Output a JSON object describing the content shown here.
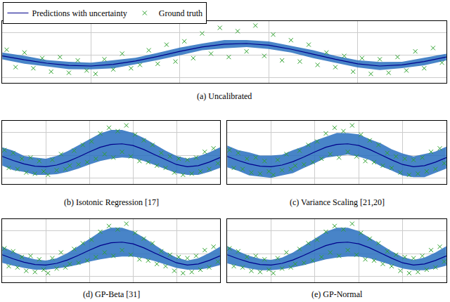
{
  "chart_data": [
    {
      "type": "line",
      "title": "(a) Uncalibrated",
      "legend": "top left",
      "grid": true,
      "tick_labels": false,
      "xlim": [
        0,
        10
      ],
      "xticks": [
        0,
        2,
        4,
        6,
        8,
        10
      ],
      "ylim": [
        -2.5,
        3
      ],
      "yticks": [
        -2,
        0,
        2
      ],
      "series": [
        {
          "name": "Ground truth",
          "type": "scatter",
          "marker": "x",
          "color": "#2ca02c",
          "x": [
            0.1,
            0.3,
            0.5,
            0.7,
            0.9,
            1.1,
            1.3,
            1.5,
            1.7,
            1.9,
            2.1,
            2.3,
            2.5,
            2.7,
            2.9,
            3.1,
            3.3,
            3.5,
            3.7,
            3.9,
            4.1,
            4.3,
            4.5,
            4.7,
            4.9,
            5.1,
            5.3,
            5.5,
            5.7,
            5.9,
            6.1,
            6.3,
            6.5,
            6.7,
            6.9,
            7.1,
            7.3,
            7.5,
            7.7,
            7.9,
            8.1,
            8.3,
            8.5,
            8.7,
            8.9,
            9.1,
            9.3,
            9.5,
            9.7,
            9.9
          ],
          "values": [
            0.45,
            -1.1,
            0.2,
            -1.2,
            -0.3,
            -1.5,
            -0.2,
            -1.6,
            -0.5,
            -1.4,
            -1.7,
            -0.4,
            -1.3,
            0.1,
            -1.2,
            -0.9,
            0.4,
            -0.8,
            0.9,
            -0.6,
            1.2,
            -0.3,
            1.9,
            0.1,
            2.4,
            -0.2,
            2.1,
            0.3,
            2.6,
            -0.1,
            1.8,
            -0.5,
            1.3,
            -0.6,
            0.9,
            -0.9,
            0.2,
            -1.1,
            -0.1,
            -1.5,
            -0.3,
            -1.7,
            -0.4,
            -1.6,
            -0.2,
            -1.4,
            0.3,
            -1.2,
            0.6,
            -0.7
          ]
        },
        {
          "name": "Predictions with uncertainty",
          "type": "line",
          "color": "#00008b",
          "x": [
            0,
            0.5,
            1,
            1.5,
            2,
            2.5,
            3,
            3.5,
            4,
            4.5,
            5,
            5.5,
            6,
            6.5,
            7,
            7.5,
            8,
            8.5,
            9,
            9.5,
            10
          ],
          "values": [
            -0.1,
            -0.45,
            -0.75,
            -0.95,
            -1.0,
            -0.85,
            -0.55,
            -0.15,
            0.3,
            0.7,
            0.95,
            1.0,
            0.85,
            0.5,
            0.05,
            -0.4,
            -0.8,
            -1.0,
            -0.9,
            -0.6,
            -0.2
          ],
          "uncertainty": [
            0.3,
            0.35,
            0.28,
            0.33,
            0.3,
            0.36,
            0.29,
            0.32,
            0.34,
            0.3,
            0.37,
            0.31,
            0.33,
            0.29,
            0.35,
            0.3,
            0.32,
            0.36,
            0.28,
            0.33,
            0.3
          ]
        }
      ]
    },
    {
      "type": "line",
      "title": "(b) Isotonic Regression [17]",
      "grid": true,
      "tick_labels": false,
      "xlim": [
        0,
        10
      ],
      "xticks": [
        0,
        2,
        4,
        6,
        8,
        10
      ],
      "ylim": [
        -2.5,
        3
      ],
      "yticks": [
        -2,
        0,
        2
      ],
      "series": [
        {
          "name": "Ground truth",
          "type": "scatter",
          "marker": "x",
          "color": "#2ca02c",
          "x": [
            0.1,
            0.3,
            0.5,
            0.7,
            0.9,
            1.1,
            1.3,
            1.5,
            1.7,
            1.9,
            2.1,
            2.3,
            2.5,
            2.7,
            2.9,
            3.1,
            3.3,
            3.5,
            3.7,
            3.9,
            4.1,
            4.3,
            4.5,
            4.7,
            4.9,
            5.1,
            5.3,
            5.5,
            5.7,
            5.9,
            6.1,
            6.3,
            6.5,
            6.7,
            6.9,
            7.1,
            7.3,
            7.5,
            7.7,
            7.9,
            8.1,
            8.3,
            8.5,
            8.7,
            8.9,
            9.1,
            9.3,
            9.5,
            9.7,
            9.9
          ],
          "values": [
            0.45,
            -1.1,
            0.2,
            -1.2,
            -0.3,
            -1.5,
            -0.2,
            -1.6,
            -0.5,
            -1.4,
            -1.7,
            -0.4,
            -1.3,
            0.1,
            -1.2,
            -0.9,
            0.4,
            -0.8,
            0.9,
            -0.6,
            1.2,
            -0.3,
            1.9,
            0.1,
            2.4,
            -0.2,
            2.1,
            0.3,
            2.6,
            -0.1,
            1.8,
            -0.5,
            1.3,
            -0.6,
            0.9,
            -0.9,
            0.2,
            -1.1,
            -0.1,
            -1.5,
            -0.3,
            -1.7,
            -0.4,
            -1.6,
            -0.2,
            -1.4,
            0.3,
            -1.2,
            0.6,
            -0.7
          ]
        },
        {
          "name": "Predictions with uncertainty",
          "type": "line",
          "color": "#00008b",
          "x": [
            0,
            0.5,
            1,
            1.5,
            2,
            2.5,
            3,
            3.5,
            4,
            4.5,
            5,
            5.5,
            6,
            6.5,
            7,
            7.5,
            8,
            8.5,
            9,
            9.5,
            10
          ],
          "values": [
            -0.1,
            -0.45,
            -0.75,
            -0.95,
            -1.0,
            -0.85,
            -0.55,
            -0.15,
            0.3,
            0.7,
            0.95,
            1.0,
            0.85,
            0.5,
            0.05,
            -0.4,
            -0.8,
            -1.0,
            -0.9,
            -0.6,
            -0.2
          ],
          "uncertainty": [
            0.8,
            0.85,
            0.7,
            0.75,
            0.7,
            0.8,
            0.9,
            1.0,
            1.1,
            1.2,
            1.25,
            1.2,
            1.1,
            1.0,
            0.9,
            0.8,
            0.75,
            0.7,
            0.8,
            0.85,
            0.9
          ]
        }
      ]
    },
    {
      "type": "line",
      "title": "(c) Variance Scaling [21,20]",
      "grid": true,
      "tick_labels": false,
      "xlim": [
        0,
        10
      ],
      "xticks": [
        0,
        2,
        4,
        6,
        8,
        10
      ],
      "ylim": [
        -2.5,
        3
      ],
      "yticks": [
        -2,
        0,
        2
      ],
      "series": [
        {
          "name": "Ground truth",
          "type": "scatter",
          "marker": "x",
          "color": "#2ca02c",
          "x": [
            0.1,
            0.3,
            0.5,
            0.7,
            0.9,
            1.1,
            1.3,
            1.5,
            1.7,
            1.9,
            2.1,
            2.3,
            2.5,
            2.7,
            2.9,
            3.1,
            3.3,
            3.5,
            3.7,
            3.9,
            4.1,
            4.3,
            4.5,
            4.7,
            4.9,
            5.1,
            5.3,
            5.5,
            5.7,
            5.9,
            6.1,
            6.3,
            6.5,
            6.7,
            6.9,
            7.1,
            7.3,
            7.5,
            7.7,
            7.9,
            8.1,
            8.3,
            8.5,
            8.7,
            8.9,
            9.1,
            9.3,
            9.5,
            9.7,
            9.9
          ],
          "values": [
            0.45,
            -1.1,
            0.2,
            -1.2,
            -0.3,
            -1.5,
            -0.2,
            -1.6,
            -0.5,
            -1.4,
            -1.7,
            -0.4,
            -1.3,
            0.1,
            -1.2,
            -0.9,
            0.4,
            -0.8,
            0.9,
            -0.6,
            1.2,
            -0.3,
            1.9,
            0.1,
            2.4,
            -0.2,
            2.1,
            0.3,
            2.6,
            -0.1,
            1.8,
            -0.5,
            1.3,
            -0.6,
            0.9,
            -0.9,
            0.2,
            -1.1,
            -0.1,
            -1.5,
            -0.3,
            -1.7,
            -0.4,
            -1.6,
            -0.2,
            -1.4,
            0.3,
            -1.2,
            0.6,
            -0.7
          ]
        },
        {
          "name": "Predictions with uncertainty",
          "type": "line",
          "color": "#00008b",
          "x": [
            0,
            0.5,
            1,
            1.5,
            2,
            2.5,
            3,
            3.5,
            4,
            4.5,
            5,
            5.5,
            6,
            6.5,
            7,
            7.5,
            8,
            8.5,
            9,
            9.5,
            10
          ],
          "values": [
            -0.1,
            -0.45,
            -0.75,
            -0.95,
            -1.0,
            -0.85,
            -0.55,
            -0.15,
            0.3,
            0.7,
            0.95,
            1.0,
            0.85,
            0.5,
            0.05,
            -0.4,
            -0.8,
            -1.0,
            -0.9,
            -0.6,
            -0.2
          ],
          "uncertainty": [
            0.95,
            0.9,
            1.0,
            0.92,
            0.97,
            0.9,
            1.0,
            0.94,
            0.98,
            0.91,
            1.0,
            0.93,
            0.97,
            0.9,
            0.99,
            0.92,
            0.96,
            0.9,
            1.0,
            0.93,
            0.95
          ]
        }
      ]
    },
    {
      "type": "line",
      "title": "(d) GP-Beta [31]",
      "grid": true,
      "tick_labels": false,
      "xlim": [
        0,
        10
      ],
      "xticks": [
        0,
        2,
        4,
        6,
        8,
        10
      ],
      "ylim": [
        -2.5,
        3
      ],
      "yticks": [
        -2,
        0,
        2
      ],
      "series": [
        {
          "name": "Ground truth",
          "type": "scatter",
          "marker": "x",
          "color": "#2ca02c",
          "x": [
            0.1,
            0.3,
            0.5,
            0.7,
            0.9,
            1.1,
            1.3,
            1.5,
            1.7,
            1.9,
            2.1,
            2.3,
            2.5,
            2.7,
            2.9,
            3.1,
            3.3,
            3.5,
            3.7,
            3.9,
            4.1,
            4.3,
            4.5,
            4.7,
            4.9,
            5.1,
            5.3,
            5.5,
            5.7,
            5.9,
            6.1,
            6.3,
            6.5,
            6.7,
            6.9,
            7.1,
            7.3,
            7.5,
            7.7,
            7.9,
            8.1,
            8.3,
            8.5,
            8.7,
            8.9,
            9.1,
            9.3,
            9.5,
            9.7,
            9.9
          ],
          "values": [
            0.45,
            -1.1,
            0.2,
            -1.2,
            -0.3,
            -1.5,
            -0.2,
            -1.6,
            -0.5,
            -1.4,
            -1.7,
            -0.4,
            -1.3,
            0.1,
            -1.2,
            -0.9,
            0.4,
            -0.8,
            0.9,
            -0.6,
            1.2,
            -0.3,
            1.9,
            0.1,
            2.4,
            -0.2,
            2.1,
            0.3,
            2.6,
            -0.1,
            1.8,
            -0.5,
            1.3,
            -0.6,
            0.9,
            -0.9,
            0.2,
            -1.1,
            -0.1,
            -1.5,
            -0.3,
            -1.7,
            -0.4,
            -1.6,
            -0.2,
            -1.4,
            0.3,
            -1.2,
            0.6,
            -0.7
          ]
        },
        {
          "name": "Predictions with uncertainty",
          "type": "line",
          "color": "#00008b",
          "x": [
            0,
            0.5,
            1,
            1.5,
            2,
            2.5,
            3,
            3.5,
            4,
            4.5,
            5,
            5.5,
            6,
            6.5,
            7,
            7.5,
            8,
            8.5,
            9,
            9.5,
            10
          ],
          "values": [
            -0.1,
            -0.45,
            -0.75,
            -0.95,
            -1.0,
            -0.85,
            -0.55,
            -0.15,
            0.3,
            0.7,
            0.95,
            1.0,
            0.85,
            0.5,
            0.05,
            -0.4,
            -0.8,
            -1.0,
            -0.9,
            -0.6,
            -0.2
          ],
          "uncertainty": [
            0.7,
            0.6,
            0.5,
            0.45,
            0.4,
            0.45,
            0.6,
            0.8,
            1.0,
            1.2,
            1.3,
            1.25,
            1.1,
            0.9,
            0.7,
            0.55,
            0.45,
            0.4,
            0.5,
            0.65,
            0.8
          ]
        }
      ]
    },
    {
      "type": "line",
      "title": "(e) GP-Normal",
      "grid": true,
      "tick_labels": false,
      "xlim": [
        0,
        10
      ],
      "xticks": [
        0,
        2,
        4,
        6,
        8,
        10
      ],
      "ylim": [
        -2.5,
        3
      ],
      "yticks": [
        -2,
        0,
        2
      ],
      "series": [
        {
          "name": "Ground truth",
          "type": "scatter",
          "marker": "x",
          "color": "#2ca02c",
          "x": [
            0.1,
            0.3,
            0.5,
            0.7,
            0.9,
            1.1,
            1.3,
            1.5,
            1.7,
            1.9,
            2.1,
            2.3,
            2.5,
            2.7,
            2.9,
            3.1,
            3.3,
            3.5,
            3.7,
            3.9,
            4.1,
            4.3,
            4.5,
            4.7,
            4.9,
            5.1,
            5.3,
            5.5,
            5.7,
            5.9,
            6.1,
            6.3,
            6.5,
            6.7,
            6.9,
            7.1,
            7.3,
            7.5,
            7.7,
            7.9,
            8.1,
            8.3,
            8.5,
            8.7,
            8.9,
            9.1,
            9.3,
            9.5,
            9.7,
            9.9
          ],
          "values": [
            0.45,
            -1.1,
            0.2,
            -1.2,
            -0.3,
            -1.5,
            -0.2,
            -1.6,
            -0.5,
            -1.4,
            -1.7,
            -0.4,
            -1.3,
            0.1,
            -1.2,
            -0.9,
            0.4,
            -0.8,
            0.9,
            -0.6,
            1.2,
            -0.3,
            1.9,
            0.1,
            2.4,
            -0.2,
            2.1,
            0.3,
            2.6,
            -0.1,
            1.8,
            -0.5,
            1.3,
            -0.6,
            0.9,
            -0.9,
            0.2,
            -1.1,
            -0.1,
            -1.5,
            -0.3,
            -1.7,
            -0.4,
            -1.6,
            -0.2,
            -1.4,
            0.3,
            -1.2,
            0.6,
            -0.7
          ]
        },
        {
          "name": "Predictions with uncertainty",
          "type": "line",
          "color": "#00008b",
          "x": [
            0,
            0.5,
            1,
            1.5,
            2,
            2.5,
            3,
            3.5,
            4,
            4.5,
            5,
            5.5,
            6,
            6.5,
            7,
            7.5,
            8,
            8.5,
            9,
            9.5,
            10
          ],
          "values": [
            -0.1,
            -0.45,
            -0.75,
            -0.95,
            -1.0,
            -0.85,
            -0.55,
            -0.15,
            0.3,
            0.7,
            0.95,
            1.0,
            0.85,
            0.5,
            0.05,
            -0.4,
            -0.8,
            -1.0,
            -0.9,
            -0.6,
            -0.2
          ],
          "uncertainty": [
            0.75,
            0.65,
            0.55,
            0.5,
            0.45,
            0.5,
            0.65,
            0.85,
            1.05,
            1.2,
            1.3,
            1.25,
            1.1,
            0.9,
            0.75,
            0.6,
            0.5,
            0.45,
            0.55,
            0.7,
            0.85
          ]
        }
      ]
    }
  ]
}
